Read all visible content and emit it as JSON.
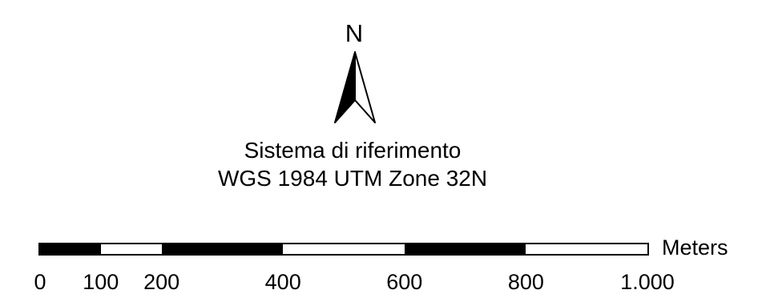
{
  "north_arrow": {
    "label": "N",
    "icon": "north-arrow-icon"
  },
  "reference_system": {
    "line1": "Sistema di riferimento",
    "line2": "WGS 1984 UTM Zone 32N"
  },
  "scale_bar": {
    "units": "Meters",
    "segments": [
      {
        "from": 0,
        "to": 100,
        "fill": "#000000"
      },
      {
        "from": 100,
        "to": 200,
        "fill": "#ffffff"
      },
      {
        "from": 200,
        "to": 400,
        "fill": "#000000"
      },
      {
        "from": 400,
        "to": 600,
        "fill": "#ffffff"
      },
      {
        "from": 600,
        "to": 800,
        "fill": "#000000"
      },
      {
        "from": 800,
        "to": 1000,
        "fill": "#ffffff"
      }
    ],
    "ticks": [
      {
        "value": 0,
        "label": "0"
      },
      {
        "value": 100,
        "label": "100"
      },
      {
        "value": 200,
        "label": "200"
      },
      {
        "value": 400,
        "label": "400"
      },
      {
        "value": 600,
        "label": "600"
      },
      {
        "value": 800,
        "label": "800"
      },
      {
        "value": 1000,
        "label": "1.000"
      }
    ]
  }
}
